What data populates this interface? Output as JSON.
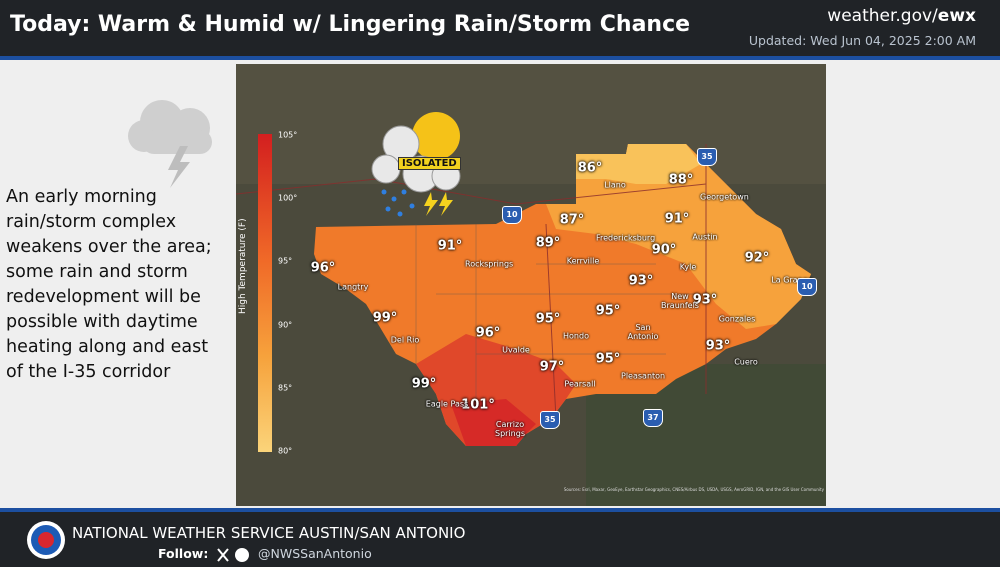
{
  "header": {
    "title": "Today: Warm & Humid w/ Lingering Rain/Storm Chance",
    "site_prefix": "weather.gov/",
    "site_office": "ewx",
    "updated": "Updated: Wed Jun 04, 2025 2:00 AM"
  },
  "description": "An early morning rain/storm complex weakens over the area; some rain and storm redevelopment will be possible with daytime heating along and east of the I-35 corridor",
  "map": {
    "weather_icon_label": "ISOLATED",
    "legend": {
      "title": "High Temperature (F)",
      "ticks": [
        "105°",
        "100°",
        "95°",
        "90°",
        "85°",
        "80°"
      ]
    },
    "temperature_labels": [
      "86°",
      "88°",
      "87°",
      "91°",
      "89°",
      "90°",
      "91°",
      "92°",
      "96°",
      "93°",
      "99°",
      "95°",
      "93°",
      "95°",
      "96°",
      "93°",
      "95°",
      "97°",
      "99°",
      "101°"
    ],
    "city_labels": [
      "Llano",
      "Georgetown",
      "Fredericksburg",
      "Austin",
      "Kerrville",
      "Kyle",
      "Rocksprings",
      "La Grange",
      "Langtry",
      "New Braunfels",
      "Gonzales",
      "Del Rio",
      "Hondo",
      "San Antonio",
      "Uvalde",
      "Cuero",
      "Pleasanton",
      "Pearsall",
      "Eagle Pass",
      "Carrizo Springs"
    ],
    "highway_shields": [
      "35",
      "10",
      "10",
      "35",
      "37"
    ],
    "source": "Sources: Esri, Maxar, GeoEye, Earthstar Geographics, CNES/Airbus DS, USDA, USGS, AeroGRID, IGN, and the GIS User Community"
  },
  "footer": {
    "office": "NATIONAL WEATHER SERVICE AUSTIN/SAN ANTONIO",
    "follow": "Follow:",
    "handle": "@NWSSanAntonio"
  }
}
